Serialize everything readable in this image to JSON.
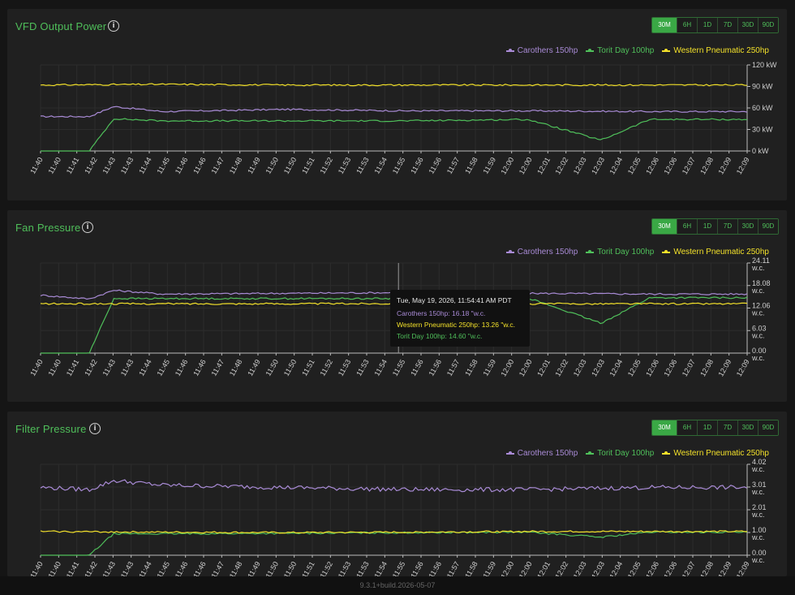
{
  "ranges": [
    "30M",
    "6H",
    "1D",
    "7D",
    "30D",
    "90D"
  ],
  "active_range": "30M",
  "legend": [
    {
      "label": "Carothers 150hp",
      "color": "#a98bd6"
    },
    {
      "label": "Torit Day 100hp",
      "color": "#4fbf5a"
    },
    {
      "label": "Western Pneumatic 250hp",
      "color": "#f2e02a"
    }
  ],
  "x_ticks": [
    "11:40",
    "11:40",
    "11:41",
    "11:42",
    "11:43",
    "11:43",
    "11:44",
    "11:45",
    "11:46",
    "11:46",
    "11:47",
    "11:48",
    "11:49",
    "11:50",
    "11:50",
    "11:51",
    "11:52",
    "11:53",
    "11:53",
    "11:54",
    "11:55",
    "11:56",
    "11:56",
    "11:57",
    "11:58",
    "11:59",
    "12:00",
    "12:00",
    "12:01",
    "12:02",
    "12:03",
    "12:03",
    "12:04",
    "12:05",
    "12:06",
    "12:06",
    "12:07",
    "12:08",
    "12:09",
    "12:09"
  ],
  "panels": [
    {
      "title": "VFD Output Power",
      "y_ticks": [
        "120 kW",
        "90 kW",
        "60 kW",
        "30 kW",
        "0 kW"
      ]
    },
    {
      "title": "Fan Pressure",
      "y_ticks": [
        "24.11 w.c.",
        "18.08 w.c.",
        "12.06 w.c.",
        "6.03 w.c.",
        "0.00 w.c."
      ],
      "tooltip": {
        "time": "Tue, May 19, 2026, 11:54:41 AM PDT",
        "lines": [
          {
            "text": "Carothers 150hp: 16.18 \"w.c.",
            "color": "#a98bd6"
          },
          {
            "text": "Western Pneumatic 250hp: 13.26 \"w.c.",
            "color": "#f2e02a"
          },
          {
            "text": "Torit Day 100hp: 14.60 \"w.c.",
            "color": "#4fbf5a"
          }
        ]
      }
    },
    {
      "title": "Filter Pressure",
      "y_ticks": [
        "4.02 w.c.",
        "3.01 w.c.",
        "2.01 w.c.",
        "1.00 w.c.",
        "0.00 w.c."
      ]
    }
  ],
  "chart_data": [
    {
      "type": "line",
      "title": "VFD Output Power",
      "ylim": [
        0,
        120
      ],
      "x_range": [
        "11:40",
        "12:09"
      ],
      "series": [
        {
          "name": "Carothers 150hp",
          "x": [
            "11:40",
            "11:42",
            "11:43",
            "11:45",
            "11:50",
            "11:55",
            "12:00",
            "12:05",
            "12:09"
          ],
          "values": [
            48,
            48,
            62,
            55,
            58,
            56,
            56,
            55,
            55
          ]
        },
        {
          "name": "Torit Day 100hp",
          "x": [
            "11:40",
            "11:42",
            "11:43",
            "11:45",
            "11:50",
            "11:55",
            "12:00",
            "12:03",
            "12:05",
            "12:09"
          ],
          "values": [
            0,
            0,
            45,
            42,
            42,
            42,
            44,
            15,
            44,
            44
          ]
        },
        {
          "name": "Western Pneumatic 250hp",
          "x": [
            "11:40",
            "11:45",
            "11:50",
            "11:55",
            "12:00",
            "12:05",
            "12:09"
          ],
          "values": [
            92,
            93,
            92,
            92,
            92,
            92,
            92
          ]
        }
      ]
    },
    {
      "type": "line",
      "title": "Fan Pressure",
      "ylim": [
        0,
        24.11
      ],
      "x_range": [
        "11:40",
        "12:09"
      ],
      "series": [
        {
          "name": "Carothers 150hp",
          "x": [
            "11:40",
            "11:42",
            "11:43",
            "11:45",
            "11:50",
            "11:55",
            "12:00",
            "12:05",
            "12:09"
          ],
          "values": [
            15.5,
            14.5,
            16.8,
            15.8,
            16.0,
            16.2,
            16.0,
            15.8,
            15.8
          ]
        },
        {
          "name": "Torit Day 100hp",
          "x": [
            "11:40",
            "11:42",
            "11:43",
            "11:45",
            "11:50",
            "11:55",
            "12:00",
            "12:03",
            "12:05",
            "12:09"
          ],
          "values": [
            0,
            0,
            14.6,
            14.6,
            14.6,
            14.6,
            14.8,
            8,
            14.8,
            14.8
          ]
        },
        {
          "name": "Western Pneumatic 250hp",
          "x": [
            "11:40",
            "11:45",
            "11:50",
            "11:55",
            "12:00",
            "12:05",
            "12:09"
          ],
          "values": [
            13.2,
            13.2,
            13.2,
            13.26,
            13.2,
            13.2,
            13.2
          ]
        }
      ]
    },
    {
      "type": "line",
      "title": "Filter Pressure",
      "ylim": [
        0,
        4.02
      ],
      "x_range": [
        "11:40",
        "12:09"
      ],
      "series": [
        {
          "name": "Carothers 150hp",
          "x": [
            "11:40",
            "11:42",
            "11:43",
            "11:45",
            "11:50",
            "11:55",
            "12:00",
            "12:05",
            "12:09"
          ],
          "values": [
            3.0,
            2.9,
            3.3,
            3.1,
            3.0,
            2.9,
            2.9,
            3.0,
            3.0
          ]
        },
        {
          "name": "Torit Day 100hp",
          "x": [
            "11:40",
            "11:42",
            "11:43",
            "11:45",
            "11:50",
            "11:55",
            "12:00",
            "12:03",
            "12:05",
            "12:09"
          ],
          "values": [
            0,
            0,
            0.95,
            0.95,
            0.97,
            1.0,
            1.02,
            0.8,
            1.02,
            1.02
          ]
        },
        {
          "name": "Western Pneumatic 250hp",
          "x": [
            "11:40",
            "11:45",
            "11:50",
            "11:55",
            "12:00",
            "12:05",
            "12:09"
          ],
          "values": [
            1.05,
            1.02,
            1.0,
            1.02,
            1.05,
            1.05,
            1.05
          ]
        }
      ]
    }
  ],
  "footer": "9.3.1+build.2026-05-07"
}
